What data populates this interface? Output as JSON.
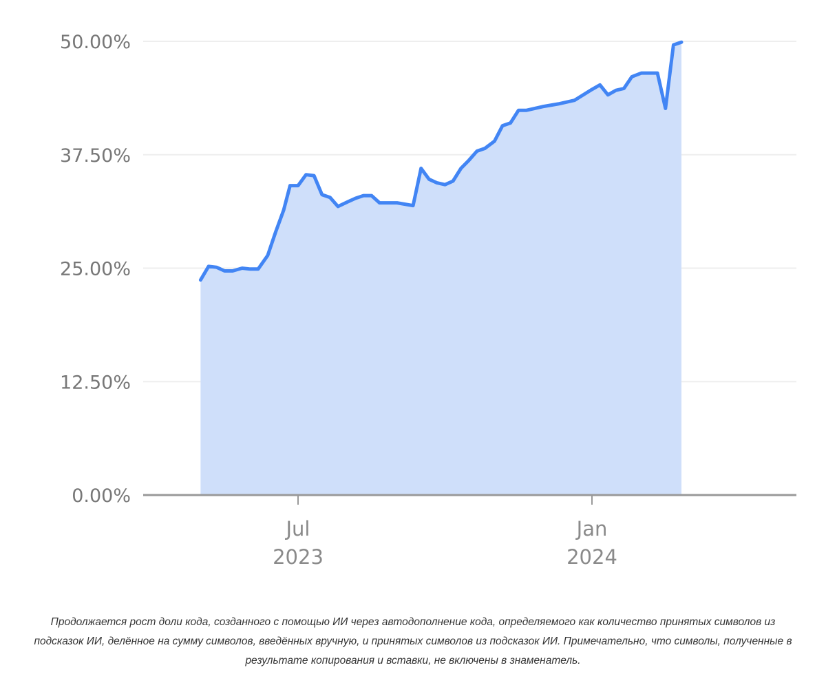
{
  "chart_data": {
    "type": "area",
    "title": "",
    "xlabel": "",
    "ylabel": "",
    "ylim": [
      0,
      50
    ],
    "y_ticks": [
      "50.00%",
      "37.50%",
      "25.00%",
      "12.50%",
      "0.00%"
    ],
    "y_tick_values": [
      50,
      37.5,
      25,
      12.5,
      0
    ],
    "x_ticks": [
      {
        "date": "2023-07-01",
        "month": "Jul",
        "year": "2023"
      },
      {
        "date": "2024-01-01",
        "month": "Jan",
        "year": "2024"
      }
    ],
    "grid": true,
    "colors": {
      "line": "#4285f4",
      "fill": "#cfdffa",
      "grid": "#eeeeee",
      "axis": "#999999"
    },
    "series": [
      {
        "points": [
          {
            "x": "2023-05-01",
            "y": 23.7
          },
          {
            "x": "2023-05-06",
            "y": 25.2
          },
          {
            "x": "2023-05-11",
            "y": 25.1
          },
          {
            "x": "2023-05-16",
            "y": 24.7
          },
          {
            "x": "2023-05-21",
            "y": 24.7
          },
          {
            "x": "2023-05-27",
            "y": 25.0
          },
          {
            "x": "2023-06-01",
            "y": 24.9
          },
          {
            "x": "2023-06-06",
            "y": 24.9
          },
          {
            "x": "2023-06-12",
            "y": 26.4
          },
          {
            "x": "2023-06-17",
            "y": 29.0
          },
          {
            "x": "2023-06-22",
            "y": 31.4
          },
          {
            "x": "2023-06-26",
            "y": 34.1
          },
          {
            "x": "2023-07-01",
            "y": 34.1
          },
          {
            "x": "2023-07-06",
            "y": 35.3
          },
          {
            "x": "2023-07-11",
            "y": 35.2
          },
          {
            "x": "2023-07-16",
            "y": 33.1
          },
          {
            "x": "2023-07-21",
            "y": 32.8
          },
          {
            "x": "2023-07-26",
            "y": 31.8
          },
          {
            "x": "2023-08-01",
            "y": 32.3
          },
          {
            "x": "2023-08-06",
            "y": 32.7
          },
          {
            "x": "2023-08-11",
            "y": 33.0
          },
          {
            "x": "2023-08-16",
            "y": 33.0
          },
          {
            "x": "2023-08-21",
            "y": 32.2
          },
          {
            "x": "2023-09-01",
            "y": 32.2
          },
          {
            "x": "2023-09-11",
            "y": 31.9
          },
          {
            "x": "2023-09-16",
            "y": 36.0
          },
          {
            "x": "2023-09-21",
            "y": 34.8
          },
          {
            "x": "2023-09-26",
            "y": 34.4
          },
          {
            "x": "2023-10-01",
            "y": 34.2
          },
          {
            "x": "2023-10-06",
            "y": 34.6
          },
          {
            "x": "2023-10-11",
            "y": 36.0
          },
          {
            "x": "2023-10-16",
            "y": 36.9
          },
          {
            "x": "2023-10-21",
            "y": 37.9
          },
          {
            "x": "2023-10-26",
            "y": 38.2
          },
          {
            "x": "2023-11-01",
            "y": 39.0
          },
          {
            "x": "2023-11-06",
            "y": 40.7
          },
          {
            "x": "2023-11-11",
            "y": 41.0
          },
          {
            "x": "2023-11-16",
            "y": 42.4
          },
          {
            "x": "2023-11-21",
            "y": 42.4
          },
          {
            "x": "2023-12-01",
            "y": 42.8
          },
          {
            "x": "2023-12-11",
            "y": 43.1
          },
          {
            "x": "2023-12-21",
            "y": 43.5
          },
          {
            "x": "2024-01-01",
            "y": 44.7
          },
          {
            "x": "2024-01-06",
            "y": 45.2
          },
          {
            "x": "2024-01-11",
            "y": 44.1
          },
          {
            "x": "2024-01-16",
            "y": 44.6
          },
          {
            "x": "2024-01-21",
            "y": 44.8
          },
          {
            "x": "2024-01-26",
            "y": 46.1
          },
          {
            "x": "2024-02-01",
            "y": 46.5
          },
          {
            "x": "2024-02-11",
            "y": 46.5
          },
          {
            "x": "2024-02-16",
            "y": 42.6
          },
          {
            "x": "2024-02-21",
            "y": 49.6
          },
          {
            "x": "2024-02-26",
            "y": 49.9
          }
        ]
      }
    ]
  },
  "caption": "Продолжается рост доли кода, созданного с помощью ИИ через автодополнение кода, определяемого как количество принятых символов из подсказок ИИ, делённое на сумму символов, введённых вручную, и принятых символов из подсказок ИИ. Примечательно, что символы, полученные в результате копирования и вставки, не включены в знаменатель."
}
